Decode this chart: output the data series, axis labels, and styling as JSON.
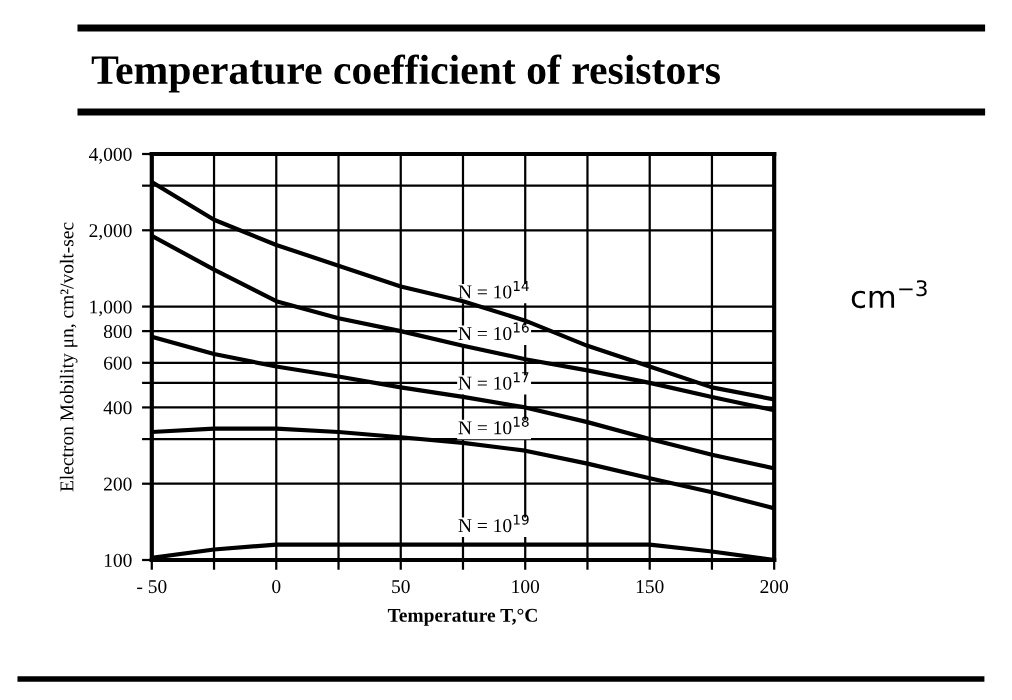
{
  "chart_data": {
    "type": "line",
    "title": "Temperature coefficient of resistors",
    "xlabel": "Temperature T,°C",
    "ylabel": "Electron Mobility μn, cm²/volt-sec",
    "annotations": [
      "cm$^{−3}$"
    ],
    "x": [
      -50,
      -25,
      0,
      25,
      50,
      75,
      100,
      125,
      150,
      175,
      200
    ],
    "series": [
      {
        "name": "N = 10$^{14}$",
        "color": "#000000",
        "values": [
          3100,
          2200,
          1750,
          1450,
          1200,
          1050,
          880,
          700,
          580,
          480,
          430
        ]
      },
      {
        "name": "N = 10$^{16}$",
        "color": "#000000",
        "values": [
          1900,
          1400,
          1050,
          900,
          800,
          700,
          620,
          560,
          500,
          440,
          390
        ]
      },
      {
        "name": "N = 10$^{17}$",
        "color": "#000000",
        "values": [
          760,
          650,
          580,
          530,
          480,
          440,
          400,
          350,
          300,
          260,
          230
        ]
      },
      {
        "name": "N = 10$^{18}$",
        "color": "#000000",
        "values": [
          320,
          330,
          330,
          320,
          305,
          290,
          270,
          240,
          210,
          185,
          160
        ]
      },
      {
        "name": "N = 10$^{19}$",
        "color": "#000000",
        "values": [
          102,
          110,
          115,
          115,
          115,
          115,
          115,
          115,
          115,
          108,
          100
        ]
      }
    ],
    "log": "y",
    "xlim": [
      -50,
      200
    ],
    "ylim": [
      100,
      4000
    ],
    "xticks": [
      {
        "value": -50,
        "label": "- 50"
      },
      {
        "value": -25,
        "label": null
      },
      0,
      {
        "value": 25,
        "label": null
      },
      50,
      {
        "value": 75,
        "label": null
      },
      100,
      {
        "value": 125,
        "label": null
      },
      150,
      {
        "value": 175,
        "label": null
      },
      {
        "value": 200,
        "label": "200"
      }
    ],
    "yticks": [
      100,
      200,
      {
        "value": 300,
        "label": null
      },
      400,
      {
        "value": 500,
        "label": null
      },
      600,
      800,
      {
        "value": 1000,
        "label": "1,000"
      },
      {
        "value": 2000,
        "label": "2,000"
      },
      {
        "value": 3000,
        "label": null
      },
      {
        "value": 4000,
        "label": "4,000"
      }
    ],
    "grid": true,
    "marker": "none",
    "line_style": "solid",
    "legend": false
  }
}
